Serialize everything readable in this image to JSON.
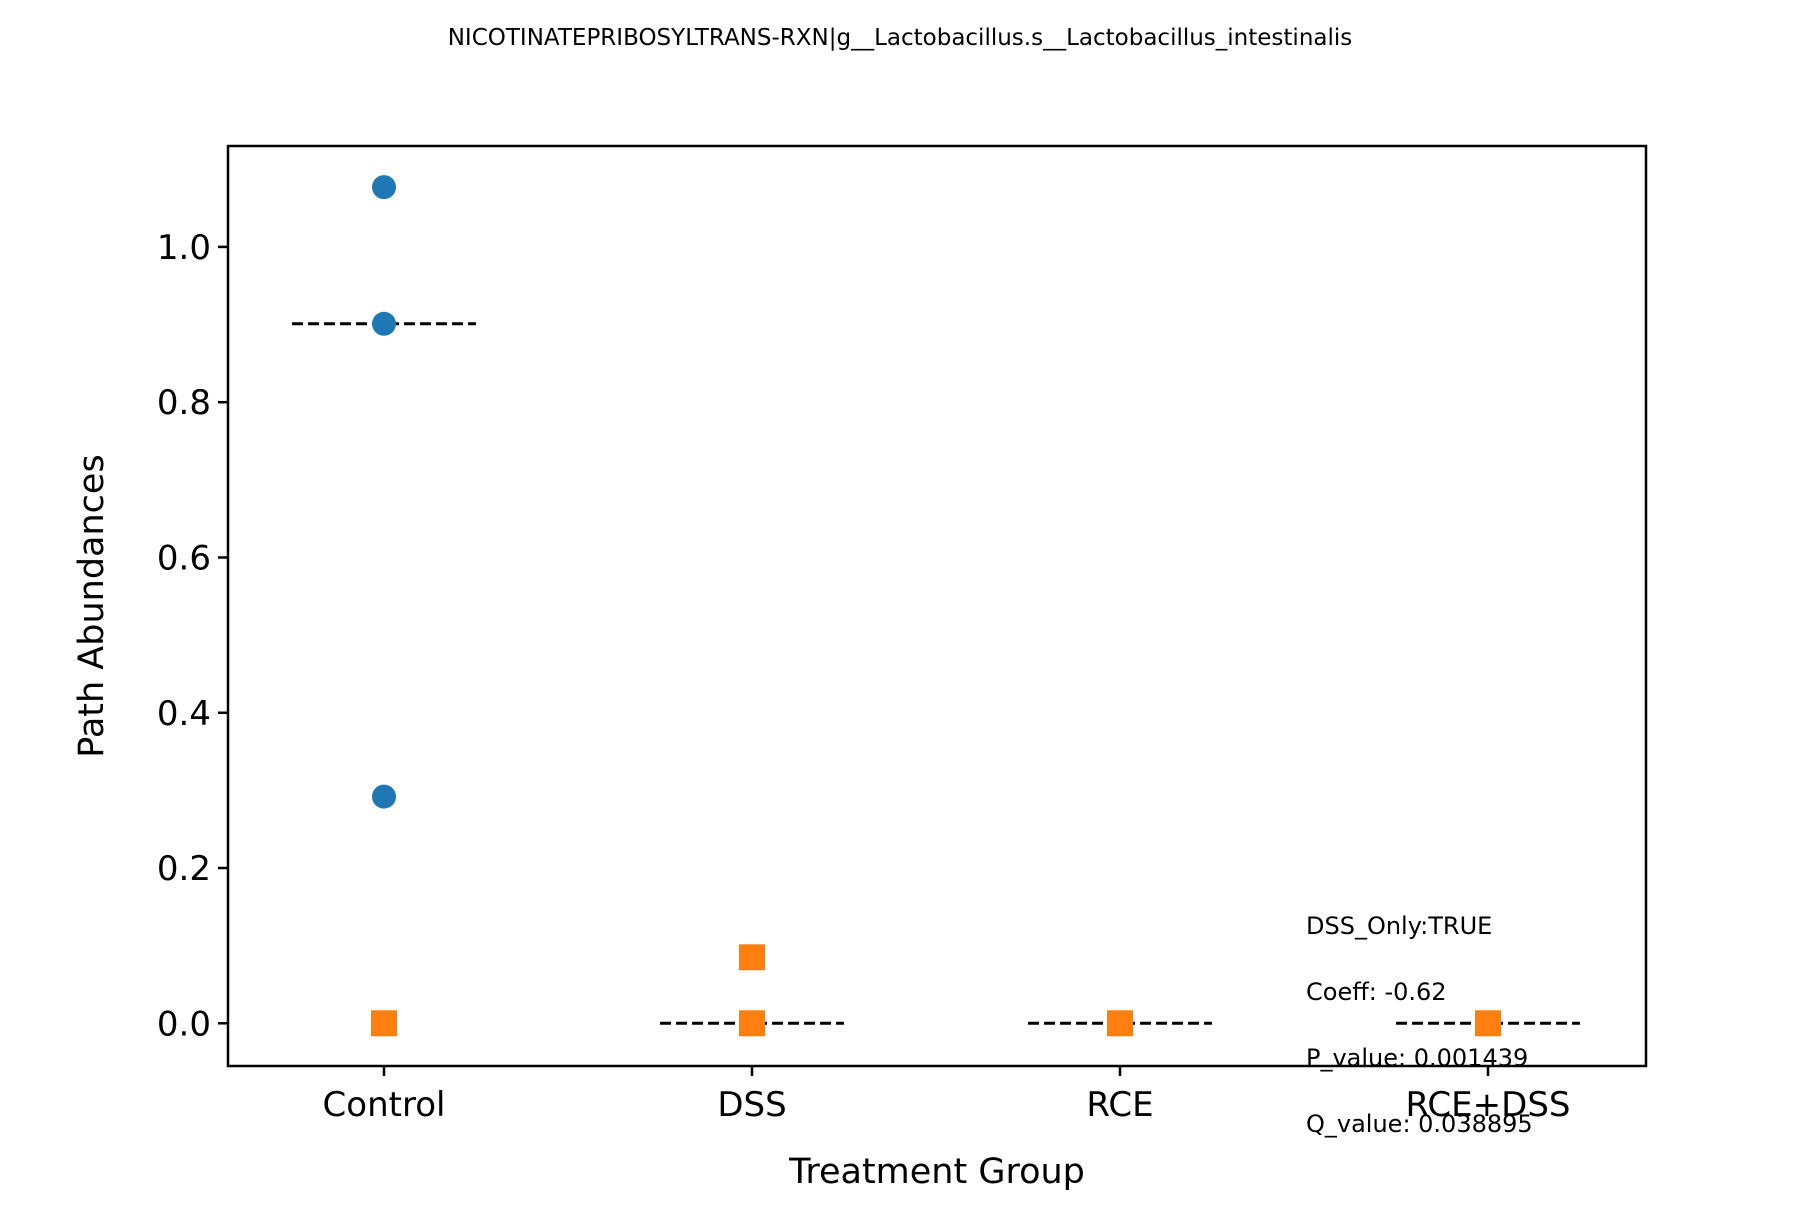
{
  "chart_data": {
    "type": "scatter",
    "title": "NICOTINATEPRIBOSYLTRANS-RXN|g__Lactobacillus.s__Lactobacillus_intestinalis",
    "xlabel": "Treatment Group",
    "ylabel": "Path Abundances",
    "categories": [
      "Control",
      "DSS",
      "RCE",
      "RCE+DSS"
    ],
    "ylim": [
      -0.055,
      1.13
    ],
    "yticks": [
      0.0,
      0.2,
      0.4,
      0.6,
      0.8,
      1.0
    ],
    "ytick_labels": [
      "0.0",
      "0.2",
      "0.4",
      "0.6",
      "0.8",
      "1.0"
    ],
    "grid": false,
    "legend": "none",
    "series": [
      {
        "marker": "circle",
        "color": "#1f77b4",
        "points": [
          {
            "x": "Control",
            "y": 1.077
          },
          {
            "x": "Control",
            "y": 0.901
          },
          {
            "x": "Control",
            "y": 0.292
          }
        ]
      },
      {
        "marker": "square",
        "color": "#ff7f0e",
        "points": [
          {
            "x": "Control",
            "y": 0.0
          },
          {
            "x": "DSS",
            "y": 0.085
          },
          {
            "x": "DSS",
            "y": 0.0
          },
          {
            "x": "RCE",
            "y": 0.0
          },
          {
            "x": "RCE+DSS",
            "y": 0.0
          }
        ]
      }
    ],
    "medians": [
      {
        "x": "Control",
        "y": 0.901
      },
      {
        "x": "DSS",
        "y": 0.0
      },
      {
        "x": "RCE",
        "y": 0.0
      },
      {
        "x": "RCE+DSS",
        "y": 0.0
      }
    ],
    "annotations": [
      "DSS_Only:TRUE",
      "Coeff: -0.62",
      "P_value: 0.001439",
      "Q_value: 0.038895"
    ]
  }
}
